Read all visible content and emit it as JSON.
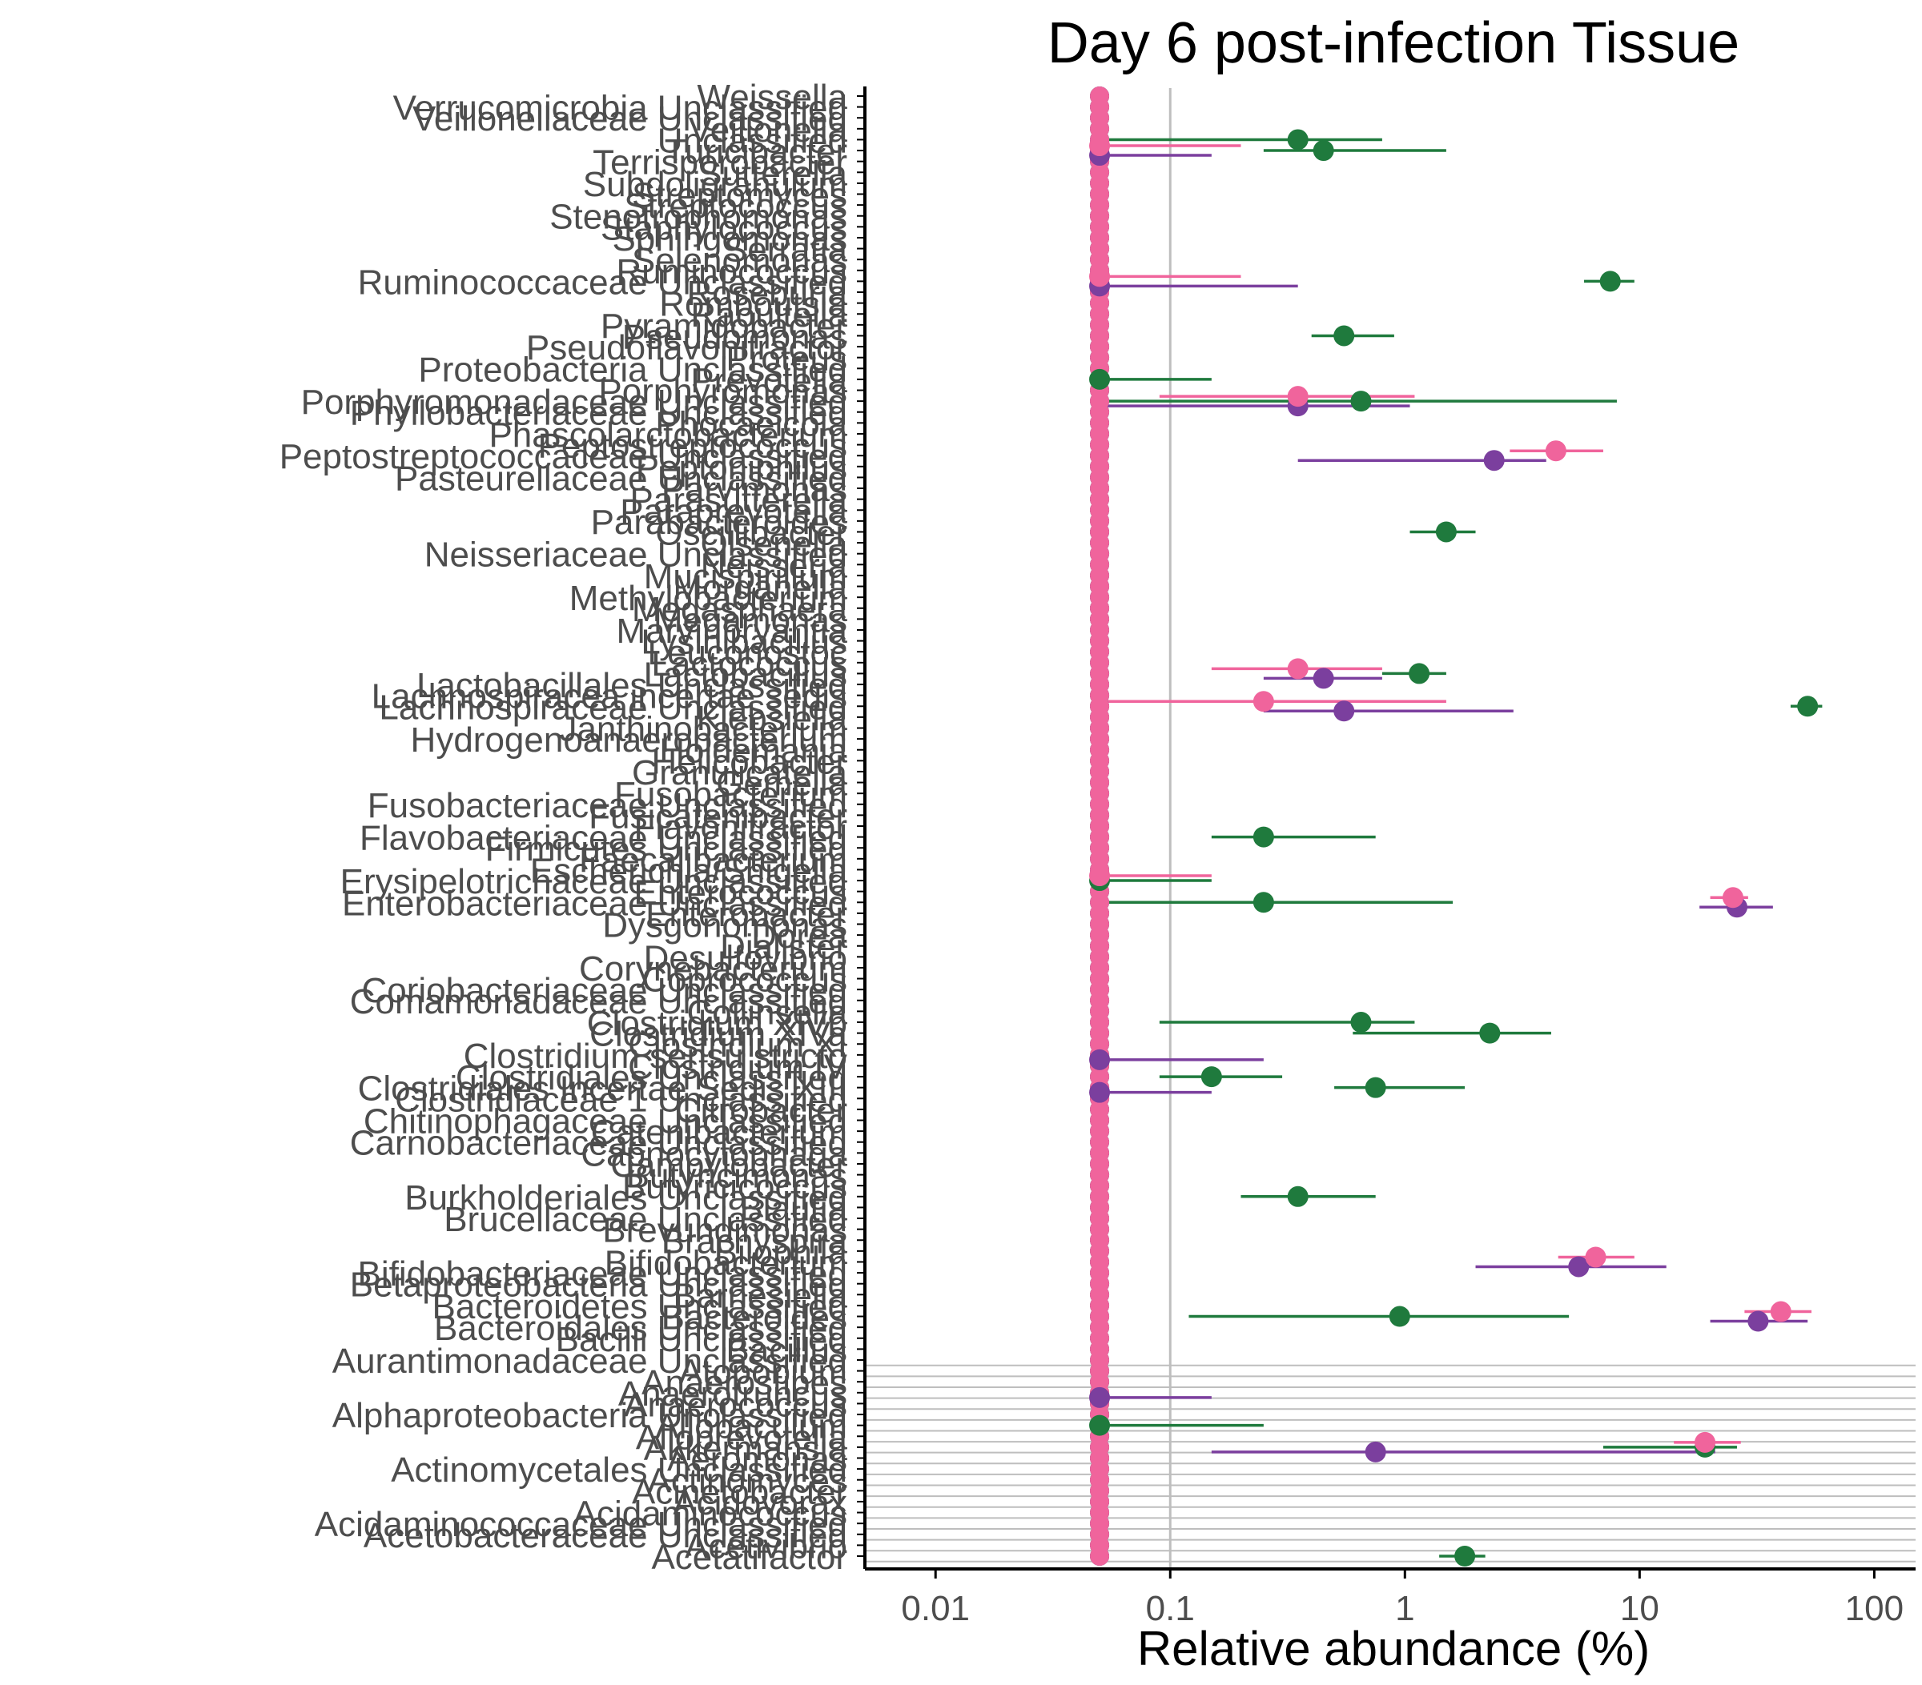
{
  "chart_data": {
    "type": "scatter",
    "title": "Day 6 post-infection Tissue",
    "xlabel": "Relative abundance (%)",
    "ylabel": "",
    "x_scale": "log10",
    "xlim": [
      0.005,
      150
    ],
    "x_ticks": [
      {
        "value": 0.01,
        "label": "0.01"
      },
      {
        "value": 0.1,
        "label": "0.1"
      },
      {
        "value": 1,
        "label": "1"
      },
      {
        "value": 10,
        "label": "10"
      },
      {
        "value": 100,
        "label": "100"
      }
    ],
    "reference_line": 0.1,
    "baseline_value": 0.05,
    "grid": false,
    "legend": "none",
    "series_colors": {
      "green": "#1f7a3d",
      "purple": "#7b3f9e",
      "pink": "#f0649c"
    },
    "categories": [
      "Weissella",
      "Verrucomicrobia Unclassified",
      "Veillonellaceae Unclassified",
      "Veillonella",
      "Unclassified",
      "Turicibacter",
      "Terrisporobacter",
      "Sutterella",
      "Subdoligranulum",
      "Streptomyces",
      "Streptococcus",
      "Stenotrophomonas",
      "Staphylococcus",
      "Sphingomonas",
      "Serratia",
      "Selenomonas",
      "Ruminococcus",
      "Ruminococcaceae Unclassified",
      "Roseburia",
      "Romboutsia",
      "Raoultella",
      "Pyramidobacter",
      "Pseudomonas",
      "Pseudoflavonifractor",
      "Proteus",
      "Proteobacteria Unclassified",
      "Prevotella",
      "Porphyromonas",
      "Porphyromonadaceae Unclassified",
      "Phyllobacteriaceae Unclassified",
      "Phocaeicola",
      "Phascolarctobacterium",
      "Peptostreptococcus",
      "Peptostreptococcaceae Unclassified",
      "Peptoniphilus",
      "Pasteurellaceae Unclassified",
      "Parvimonas",
      "Parasutterella",
      "Paraprevotella",
      "Parabacteroides",
      "Oscillibacter",
      "Olsenella",
      "Neisseriaceae Unclassified",
      "Neisseria",
      "Mucispirillum",
      "Morganella",
      "Methylobacterium",
      "Megasphaera",
      "Megamonas",
      "Marvinbryantia",
      "Lysinibacillus",
      "Leuconostoc",
      "Lactococcus",
      "Lactobacillus",
      "Lactobacillales Unclassified",
      "Lachnospiracea incertae sedis",
      "Lachnospiraceae Unclassified",
      "Klebsiella",
      "Janthinobacterium",
      "Hydrogenoanaerobacterium",
      "Holdemania",
      "Helicobacter",
      "Granulicatella",
      "Gemella",
      "Fusobacterium",
      "Fusobacteriaceae Unclassified",
      "Fusicatenibacter",
      "Flavonifractor",
      "Flavobacteriaceae Unclassified",
      "Firmicutes Unclassified",
      "Faecalibacterium",
      "Escherichia/Shigella",
      "Erysipelotrichaceae Unclassified",
      "Enterococcus",
      "Enterobacteriaceae Unclassified",
      "Enterobacter",
      "Dysgonomonas",
      "Dorea",
      "Dialister",
      "Desulfovibrio",
      "Corynebacterium",
      "Coprococcus",
      "Coriobacteriaceae Unclassified",
      "Comamonadaceae Unclassified",
      "Collinsella",
      "Clostridium XlVb",
      "Clostridium XlVa",
      "Clostridium XI",
      "Clostridium sensu stricto",
      "Clostridium IV",
      "Clostridiales Unclassified",
      "Clostridiales Incertae Sedis XIII",
      "Clostridiaceae 1 Unclassified",
      "Citrobacter",
      "Chitinophagaceae Unclassified",
      "Catenibacterium",
      "Carnobacteriaceae Unclassified",
      "Capnocytophaga",
      "Campylobacter",
      "Butyricimonas",
      "Butyricicoccus",
      "Burkholderiales Unclassified",
      "Blautia",
      "Brucellaceae Unclassified",
      "Brevundimonas",
      "Brachyspira",
      "Bilophila",
      "Bifidobacterium",
      "Bifidobacteriaceae Unclassified",
      "Betaproteobacteria Unclassified",
      "Barnesiella",
      "Bacteroidetes Unclassified",
      "Bacteroides",
      "Bacteroidales Unclassified",
      "Bacilli Unclassified",
      "Bacillus",
      "Aurantimonadaceae Unclassified",
      "Atopobium",
      "Anaerostipes",
      "Anaerotruncus",
      "Anaerococcus",
      "Alphaproteobacteria Unclassified",
      "Allobaculum",
      "Alloprevotella",
      "Akkermansia",
      "Aeromonas",
      "Actinomycetales Unclassified",
      "Actinomyces",
      "Acinetobacter",
      "Acidovorax",
      "Acidaminococcus",
      "Acidaminococcaceae Unclassified",
      "Acetobacteraceae Unclassified",
      "Acetivibrio",
      "Acetatifactor"
    ],
    "label_offsets": [
      0,
      -1,
      -1,
      -1,
      -1,
      -1,
      -1,
      -1,
      -1,
      -1,
      -1,
      -1,
      -1,
      -1,
      -1,
      -1,
      -1,
      -1,
      -1,
      -1,
      -1,
      -1,
      -1,
      -1,
      -1,
      -1,
      -1,
      -1,
      -1,
      -1,
      -1,
      -1,
      -1,
      -1,
      -1,
      -1,
      -1,
      -1,
      -1,
      -1,
      -1,
      -1,
      -1,
      -1,
      -1,
      -1,
      -1,
      -1,
      -1,
      -1,
      -1,
      -1,
      -1,
      -1,
      -1,
      -1,
      -1,
      -1,
      -1,
      -1,
      -1,
      -1,
      -1,
      -1,
      -1,
      -1,
      -1,
      -1,
      -1,
      -1,
      -1,
      -1,
      -1,
      -1,
      -1,
      -1,
      -1,
      -1,
      -1,
      -1,
      -1,
      -1,
      -1,
      -1,
      -1,
      -1,
      -1,
      -1,
      -1,
      -1,
      -1,
      -1,
      -1,
      -1,
      -1,
      -1,
      -1,
      -1,
      -1,
      -1,
      -1,
      -1,
      -1,
      -1,
      -1,
      -1,
      -1,
      -1,
      -1,
      -1,
      -1,
      -1,
      -1,
      -1,
      -1,
      -1,
      -1,
      -1,
      -1,
      -1,
      -1,
      -1,
      -1,
      -1,
      -1,
      -1,
      -1,
      -1,
      -1,
      -1,
      -1,
      -1,
      -1
    ],
    "series": [
      {
        "color": "green",
        "points": [
          {
            "category": "Unclassified",
            "x": 0.35,
            "lo": 0.05,
            "hi": 0.8
          },
          {
            "category": "Turicibacter",
            "x": 0.45,
            "lo": 0.25,
            "hi": 1.5
          },
          {
            "category": "Ruminococcaceae Unclassified",
            "x": 7.5,
            "lo": 5.8,
            "hi": 9.5
          },
          {
            "category": "Pseudomonas",
            "x": 0.55,
            "lo": 0.4,
            "hi": 0.9
          },
          {
            "category": "Prevotella",
            "x": 0.05,
            "lo": 0.05,
            "hi": 0.15
          },
          {
            "category": "Porphyromonadaceae Unclassified",
            "x": 0.65,
            "lo": 0.05,
            "hi": 8.0
          },
          {
            "category": "Oscillibacter",
            "x": 1.5,
            "lo": 1.05,
            "hi": 2.0
          },
          {
            "category": "Lactobacillus",
            "x": 1.15,
            "lo": 0.8,
            "hi": 1.5
          },
          {
            "category": "Lachnospiraceae Unclassified",
            "x": 52.0,
            "lo": 44.0,
            "hi": 60.0
          },
          {
            "category": "Flavobacteriaceae Unclassified",
            "x": 0.25,
            "lo": 0.15,
            "hi": 0.75
          },
          {
            "category": "Erysipelotrichaceae Unclassified",
            "x": 0.05,
            "lo": 0.05,
            "hi": 0.15
          },
          {
            "category": "Enterobacteriaceae Unclassified",
            "x": 0.25,
            "lo": 0.05,
            "hi": 1.6
          },
          {
            "category": "Clostridium XlVb",
            "x": 0.65,
            "lo": 0.09,
            "hi": 1.1
          },
          {
            "category": "Clostridium XlVa",
            "x": 2.3,
            "lo": 0.6,
            "hi": 4.2
          },
          {
            "category": "Clostridiales Unclassified",
            "x": 0.15,
            "lo": 0.09,
            "hi": 0.3
          },
          {
            "category": "Clostridiales Incertae Sedis XIII",
            "x": 0.75,
            "lo": 0.5,
            "hi": 1.8
          },
          {
            "category": "Burkholderiales Unclassified",
            "x": 0.35,
            "lo": 0.2,
            "hi": 0.75
          },
          {
            "category": "Bacteroides",
            "x": 0.95,
            "lo": 0.12,
            "hi": 5.0
          },
          {
            "category": "Allobaculum",
            "x": 0.05,
            "lo": 0.05,
            "hi": 0.25
          },
          {
            "category": "Akkermansia",
            "x": 19.0,
            "lo": 7.0,
            "hi": 26.0
          },
          {
            "category": "Acetatifactor",
            "x": 1.8,
            "lo": 1.4,
            "hi": 2.2
          }
        ]
      },
      {
        "color": "purple",
        "points": [
          {
            "category": "Turicibacter",
            "x": 0.05,
            "lo": 0.05,
            "hi": 0.15
          },
          {
            "category": "Ruminococcaceae Unclassified",
            "x": 0.05,
            "lo": 0.05,
            "hi": 0.35
          },
          {
            "category": "Porphyromonadaceae Unclassified",
            "x": 0.35,
            "lo": 0.05,
            "hi": 1.05
          },
          {
            "category": "Peptostreptococcaceae Unclassified",
            "x": 2.4,
            "lo": 0.35,
            "hi": 4.0
          },
          {
            "category": "Lactobacillus",
            "x": 0.45,
            "lo": 0.25,
            "hi": 0.8
          },
          {
            "category": "Lachnospiraceae Unclassified",
            "x": 0.55,
            "lo": 0.25,
            "hi": 2.9
          },
          {
            "category": "Enterobacteriaceae Unclassified",
            "x": 26.0,
            "lo": 18.0,
            "hi": 37.0
          },
          {
            "category": "Clostridium sensu stricto",
            "x": 0.05,
            "lo": 0.05,
            "hi": 0.25
          },
          {
            "category": "Clostridiales Incertae Sedis XIII",
            "x": 0.05,
            "lo": 0.05,
            "hi": 0.15
          },
          {
            "category": "Bifidobacterium",
            "x": 5.5,
            "lo": 2.0,
            "hi": 13.0
          },
          {
            "category": "Bacteroides",
            "x": 32.0,
            "lo": 20.0,
            "hi": 52.0
          },
          {
            "category": "Anaerotruncus",
            "x": 0.05,
            "lo": 0.05,
            "hi": 0.15
          },
          {
            "category": "Akkermansia",
            "x": 0.75,
            "lo": 0.15,
            "hi": 21.0
          }
        ]
      },
      {
        "color": "pink",
        "points": [
          {
            "category": "Turicibacter",
            "x": 0.05,
            "lo": 0.05,
            "hi": 0.2
          },
          {
            "category": "Ruminococcaceae Unclassified",
            "x": 0.05,
            "lo": 0.05,
            "hi": 0.2
          },
          {
            "category": "Porphyromonadaceae Unclassified",
            "x": 0.35,
            "lo": 0.09,
            "hi": 1.1
          },
          {
            "category": "Peptostreptococcaceae Unclassified",
            "x": 4.4,
            "lo": 2.8,
            "hi": 7.0
          },
          {
            "category": "Lactobacillus",
            "x": 0.35,
            "lo": 0.15,
            "hi": 0.8
          },
          {
            "category": "Lachnospiraceae Unclassified",
            "x": 0.25,
            "lo": 0.05,
            "hi": 1.5
          },
          {
            "category": "Erysipelotrichaceae Unclassified",
            "x": 0.05,
            "lo": 0.05,
            "hi": 0.15
          },
          {
            "category": "Enterobacteriaceae Unclassified",
            "x": 25.0,
            "lo": 20.0,
            "hi": 29.0
          },
          {
            "category": "Bifidobacterium",
            "x": 6.5,
            "lo": 4.5,
            "hi": 9.5
          },
          {
            "category": "Bacteroides",
            "x": 40.0,
            "lo": 28.0,
            "hi": 54.0
          },
          {
            "category": "Akkermansia",
            "x": 19.0,
            "lo": 14.0,
            "hi": 27.0
          }
        ]
      }
    ]
  }
}
